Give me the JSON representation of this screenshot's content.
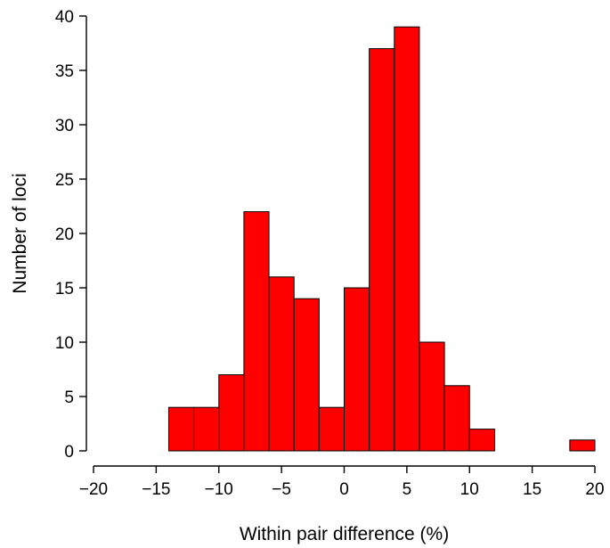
{
  "chart_data": {
    "type": "bar",
    "subtype": "histogram",
    "title": "",
    "xlabel": "Within pair difference (%)",
    "ylabel": "Number of loci",
    "xlim": [
      -20,
      20
    ],
    "ylim": [
      0,
      40
    ],
    "x_ticks": [
      -20,
      -15,
      -10,
      -5,
      0,
      5,
      10,
      15,
      20
    ],
    "y_ticks": [
      0,
      5,
      10,
      15,
      20,
      25,
      30,
      35,
      40
    ],
    "x_tick_labels": [
      "−20",
      "−15",
      "−10",
      "−5",
      "0",
      "5",
      "10",
      "15",
      "20"
    ],
    "y_tick_labels": [
      "0",
      "5",
      "10",
      "15",
      "20",
      "25",
      "30",
      "35",
      "40"
    ],
    "bin_width": 2,
    "bins": [
      {
        "x0": -14,
        "x1": -12,
        "count": 4
      },
      {
        "x0": -12,
        "x1": -10,
        "count": 4
      },
      {
        "x0": -10,
        "x1": -8,
        "count": 7
      },
      {
        "x0": -8,
        "x1": -6,
        "count": 22
      },
      {
        "x0": -6,
        "x1": -4,
        "count": 16
      },
      {
        "x0": -4,
        "x1": -2,
        "count": 14
      },
      {
        "x0": -2,
        "x1": 0,
        "count": 4
      },
      {
        "x0": 0,
        "x1": 2,
        "count": 15
      },
      {
        "x0": 2,
        "x1": 4,
        "count": 37
      },
      {
        "x0": 4,
        "x1": 6,
        "count": 39
      },
      {
        "x0": 6,
        "x1": 8,
        "count": 10
      },
      {
        "x0": 8,
        "x1": 10,
        "count": 6
      },
      {
        "x0": 10,
        "x1": 12,
        "count": 2
      },
      {
        "x0": 18,
        "x1": 20,
        "count": 1
      }
    ],
    "bar_color": "#ff0000",
    "bar_edge_color": "#000000",
    "grid": false,
    "legend": "none"
  }
}
